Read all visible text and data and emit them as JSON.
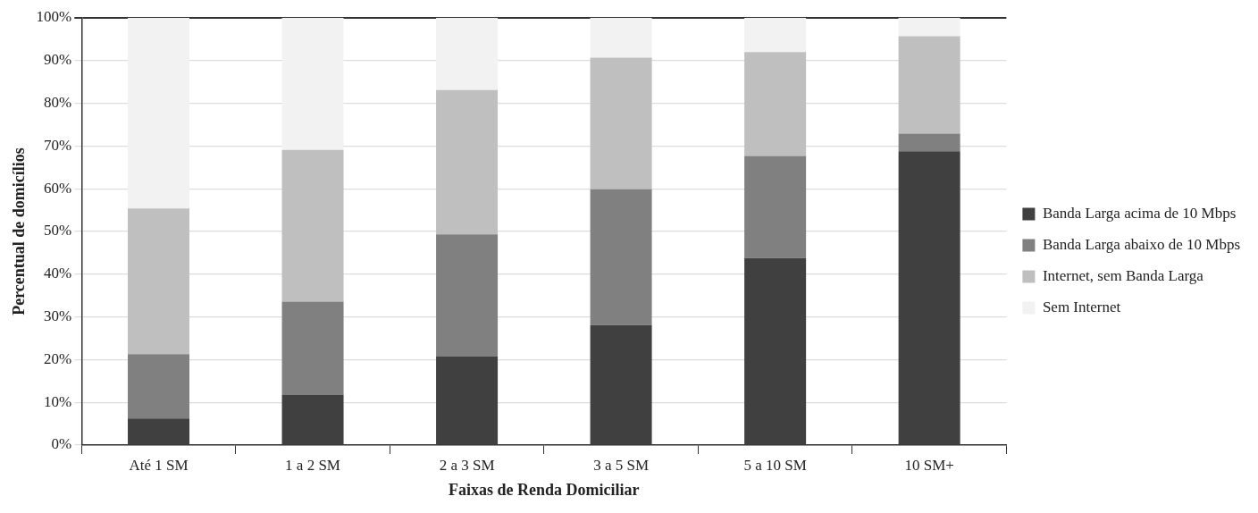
{
  "chart_data": {
    "type": "bar",
    "stacked": true,
    "xlabel": "Faixas de Renda Domiciliar",
    "ylabel": "Percentual de domicílios",
    "categories": [
      "Até 1 SM",
      "1 a 2 SM",
      "2 a 3 SM",
      "3 a 5 SM",
      "5 a 10 SM",
      "10 SM+"
    ],
    "series": [
      {
        "name": "Banda Larga acima de 10 Mbps",
        "color": "#404040",
        "values": [
          6.2,
          11.8,
          20.7,
          28.1,
          43.8,
          68.8
        ]
      },
      {
        "name": "Banda Larga abaixo de 10 Mbps",
        "color": "#808080",
        "values": [
          15.1,
          21.8,
          28.6,
          31.8,
          23.9,
          4.1
        ]
      },
      {
        "name": "Internet, sem Banda Larga",
        "color": "#bfbfbf",
        "values": [
          34.1,
          35.5,
          33.8,
          30.8,
          24.3,
          22.8
        ]
      },
      {
        "name": "Sem Internet",
        "color": "#f2f2f2",
        "values": [
          44.6,
          30.9,
          16.9,
          9.3,
          8.0,
          4.3
        ]
      }
    ],
    "ylim": [
      0,
      100
    ],
    "yticks": [
      {
        "value": 0,
        "label": "0%"
      },
      {
        "value": 10,
        "label": "10%"
      },
      {
        "value": 20,
        "label": "20%"
      },
      {
        "value": 30,
        "label": "30%"
      },
      {
        "value": 40,
        "label": "40%"
      },
      {
        "value": 50,
        "label": "50%"
      },
      {
        "value": 60,
        "label": "60%"
      },
      {
        "value": 70,
        "label": "70%"
      },
      {
        "value": 80,
        "label": "80%"
      },
      {
        "value": 90,
        "label": "90%"
      },
      {
        "value": 100,
        "label": "100%"
      }
    ],
    "grid": "y",
    "legend": "right"
  }
}
